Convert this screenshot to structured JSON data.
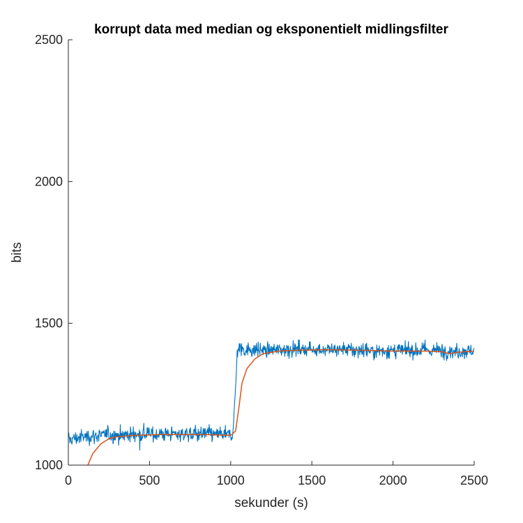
{
  "chart_data": {
    "type": "line",
    "title": "korrupt data med median og eksponentielt midlingsfilter",
    "xlabel": "sekunder (s)",
    "ylabel": "bits",
    "xlim": [
      0,
      2500
    ],
    "ylim": [
      1000,
      2500
    ],
    "xticks": [
      "0",
      "500",
      "1000",
      "1500",
      "2000",
      "2500"
    ],
    "yticks": [
      "1000",
      "1500",
      "2000",
      "2500"
    ],
    "grid": false,
    "legend": "none",
    "series": [
      {
        "color": "#0072BD",
        "style": "noisy",
        "x": [
          0,
          50,
          100,
          200,
          400,
          600,
          800,
          950,
          1010,
          1020,
          1030,
          1040,
          1050,
          1100,
          1200,
          1400,
          1600,
          1800,
          2000,
          2200,
          2300,
          2400,
          2500
        ],
        "values": [
          1090,
          1095,
          1100,
          1105,
          1108,
          1110,
          1110,
          1108,
          1105,
          1180,
          1260,
          1400,
          1410,
          1408,
          1405,
          1410,
          1408,
          1405,
          1403,
          1405,
          1405,
          1400,
          1405
        ]
      },
      {
        "color": "#D95319",
        "style": "smooth",
        "x": [
          120,
          150,
          200,
          250,
          300,
          400,
          600,
          800,
          1000,
          1030,
          1050,
          1070,
          1100,
          1150,
          1200,
          1300,
          1400,
          1600,
          1800,
          2000,
          2200,
          2300,
          2350,
          2400,
          2500
        ],
        "values": [
          1000,
          1040,
          1075,
          1093,
          1100,
          1105,
          1108,
          1108,
          1105,
          1120,
          1200,
          1290,
          1340,
          1375,
          1393,
          1402,
          1405,
          1407,
          1405,
          1402,
          1402,
          1400,
          1393,
          1398,
          1402
        ]
      }
    ]
  }
}
